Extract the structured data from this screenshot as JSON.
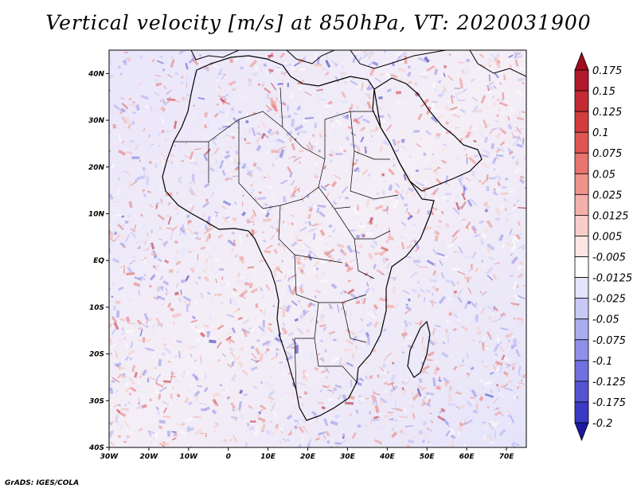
{
  "title": "Vertical velocity [m/s] at 850hPa, VT: 2020031900",
  "footer": "GrADS: IGES/COLA",
  "map": {
    "projection": "latlon",
    "lon_range": [
      -30,
      75
    ],
    "lat_range": [
      -40,
      45
    ],
    "lon_ticks": [
      {
        "value": -30,
        "label": "30W"
      },
      {
        "value": -20,
        "label": "20W"
      },
      {
        "value": -10,
        "label": "10W"
      },
      {
        "value": 0,
        "label": "0"
      },
      {
        "value": 10,
        "label": "10E"
      },
      {
        "value": 20,
        "label": "20E"
      },
      {
        "value": 30,
        "label": "30E"
      },
      {
        "value": 40,
        "label": "40E"
      },
      {
        "value": 50,
        "label": "50E"
      },
      {
        "value": 60,
        "label": "60E"
      },
      {
        "value": 70,
        "label": "70E"
      }
    ],
    "lat_ticks": [
      {
        "value": 40,
        "label": "40N"
      },
      {
        "value": 30,
        "label": "30N"
      },
      {
        "value": 20,
        "label": "20N"
      },
      {
        "value": 10,
        "label": "10N"
      },
      {
        "value": 0,
        "label": "EQ"
      },
      {
        "value": -10,
        "label": "10S"
      },
      {
        "value": -20,
        "label": "20S"
      },
      {
        "value": -30,
        "label": "30S"
      },
      {
        "value": -40,
        "label": "40S"
      }
    ],
    "field": "vertical velocity",
    "level": "850hPa",
    "valid_time": "2020031900"
  },
  "colorbar": {
    "levels": [
      {
        "label": "0.175",
        "color": "#b2182b"
      },
      {
        "label": "0.15",
        "color": "#c32a34"
      },
      {
        "label": "0.125",
        "color": "#d23c3c"
      },
      {
        "label": "0.1",
        "color": "#de5652"
      },
      {
        "label": "0.075",
        "color": "#e8756e"
      },
      {
        "label": "0.05",
        "color": "#ef928b"
      },
      {
        "label": "0.025",
        "color": "#f4b0aa"
      },
      {
        "label": "0.0125",
        "color": "#f8cdc9"
      },
      {
        "label": "0.005",
        "color": "#fbe6e4"
      },
      {
        "label": "-0.005",
        "color": "#ffffff"
      },
      {
        "label": "-0.0125",
        "color": "#e4e4fb"
      },
      {
        "label": "-0.025",
        "color": "#c9c9f6"
      },
      {
        "label": "-0.05",
        "color": "#ababf0"
      },
      {
        "label": "-0.075",
        "color": "#8f8fe8"
      },
      {
        "label": "-0.1",
        "color": "#7070de"
      },
      {
        "label": "-0.125",
        "color": "#5454d2"
      },
      {
        "label": "-0.175",
        "color": "#3a3ac4"
      },
      {
        "label": "-0.2",
        "color": "#2424b0"
      }
    ],
    "top_arrow_color": "#a01020",
    "bottom_arrow_color": "#1a1aa0"
  }
}
